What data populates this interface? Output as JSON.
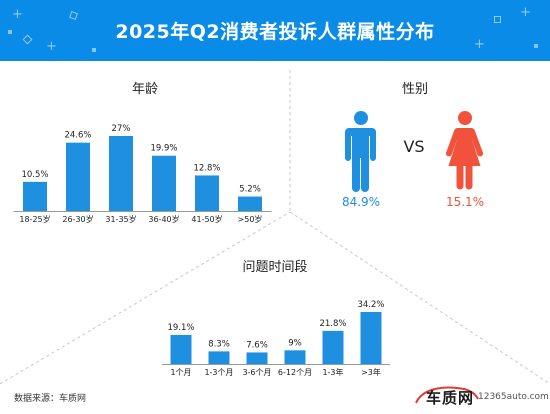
{
  "header": {
    "title": "2025年Q2消费者投诉人群属性分布",
    "background": "#0a8be8"
  },
  "age_section": {
    "title": "年龄"
  },
  "gender_section": {
    "title": "性别",
    "vs": "VS",
    "male_icon": "male-person-icon",
    "female_icon": "female-person-icon",
    "male_color": "#1f8fe0",
    "female_color": "#f0523c"
  },
  "problem_section": {
    "title": "问题时间段"
  },
  "footer": {
    "source": "数据来源：车质网",
    "logo_text": "车质网",
    "logo_url": "12365auto.com"
  },
  "chart_data": [
    {
      "type": "bar",
      "title": "年龄",
      "categories": [
        "18-25岁",
        "26-30岁",
        "31-35岁",
        "36-40岁",
        "41-50岁",
        ">50岁"
      ],
      "values": [
        10.5,
        24.6,
        27,
        19.9,
        12.8,
        5.2
      ],
      "value_labels": [
        "10.5%",
        "24.6%",
        "27%",
        "19.9%",
        "12.8%",
        "5.2%"
      ],
      "color": "#1f8fe0",
      "grid": false
    },
    {
      "type": "pie",
      "title": "性别",
      "categories": [
        "男",
        "女"
      ],
      "values": [
        84.9,
        15.1
      ],
      "value_labels": [
        "84.9%",
        "15.1%"
      ]
    },
    {
      "type": "bar",
      "title": "问题时间段",
      "categories": [
        "1个月",
        "1-3个月",
        "3-6个月",
        "6-12个月",
        "1-3年",
        ">3年"
      ],
      "values": [
        19.1,
        8.3,
        7.6,
        9,
        21.8,
        34.2
      ],
      "value_labels": [
        "19.1%",
        "8.3%",
        "7.6%",
        "9%",
        "21.8%",
        "34.2%"
      ],
      "color": "#1f8fe0",
      "grid": false
    }
  ]
}
